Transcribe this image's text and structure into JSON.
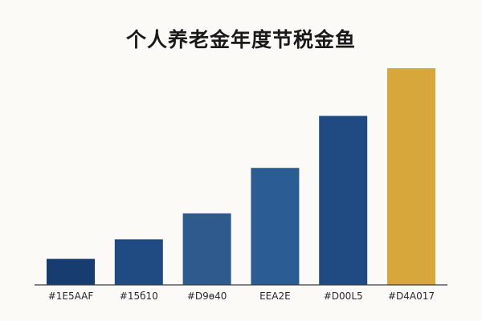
{
  "chart_data": {
    "type": "bar",
    "title": "个人养老金年度节税金鱼",
    "xlabel": "",
    "ylabel": "",
    "categories": [
      "#1E5AAF",
      "#15б10",
      "#D9ɵ40",
      "EEA2E",
      "#D00L5",
      "#D4A017"
    ],
    "values": [
      6,
      10.5,
      16.5,
      27,
      39,
      50
    ],
    "ylim": [
      0,
      50
    ],
    "grid": false,
    "legend": "none",
    "colors": [
      "#173d70",
      "#1f4a82",
      "#2e5a8e",
      "#2b5c93",
      "#1f4a82",
      "#d8a73c"
    ]
  }
}
